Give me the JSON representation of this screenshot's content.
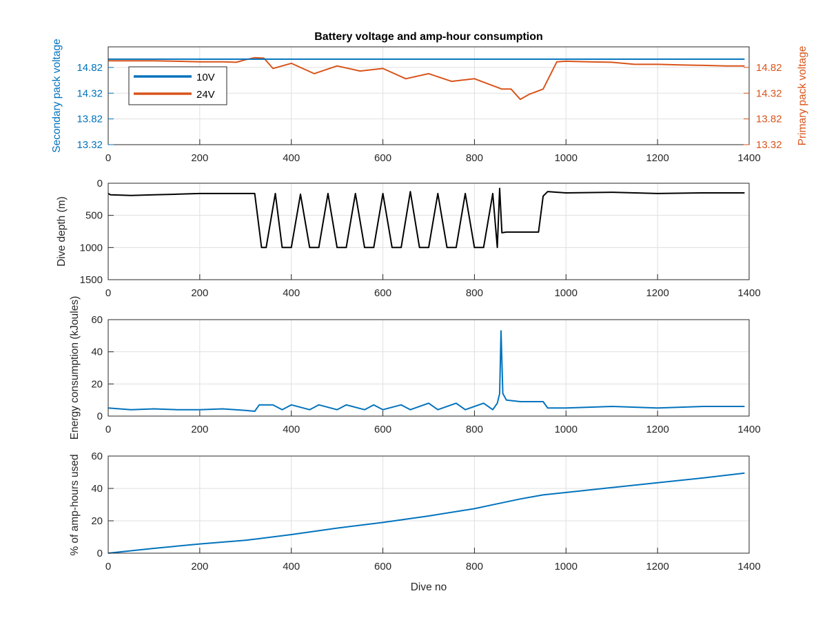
{
  "colors": {
    "blue": "#0072bd",
    "orange": "#d95319",
    "black": "#000000",
    "grid": "#dfdfdf",
    "axis": "#262626"
  },
  "chart_data": [
    {
      "type": "line",
      "title": "Battery voltage and amp-hour consumption",
      "xlabel": "",
      "ylabel_left": "Secondary pack voltage",
      "ylabel_right": "Primary pack voltage",
      "xlim": [
        0,
        1400
      ],
      "ylim": [
        13.32,
        15.22
      ],
      "x_ticks": [
        "0",
        "200",
        "400",
        "600",
        "800",
        "1000",
        "1200",
        "1400"
      ],
      "yticks_left": [
        "13.32",
        "13.82",
        "14.32",
        "14.82"
      ],
      "yticks_right": [
        "13.32",
        "13.82",
        "14.32",
        "14.82"
      ],
      "legend_position": "top-left",
      "grid": true,
      "series": [
        {
          "name": "10V",
          "axis": "left",
          "color": "#0072bd",
          "x": [
            0,
            1390
          ],
          "y": [
            14.98,
            14.98
          ]
        },
        {
          "name": "24V",
          "axis": "right",
          "color": "#d95319",
          "x": [
            0,
            50,
            100,
            150,
            200,
            250,
            280,
            300,
            320,
            340,
            360,
            400,
            450,
            500,
            550,
            600,
            650,
            700,
            750,
            800,
            830,
            860,
            880,
            900,
            920,
            950,
            980,
            1000,
            1050,
            1100,
            1150,
            1200,
            1250,
            1300,
            1350,
            1390
          ],
          "y": [
            14.95,
            14.95,
            14.95,
            14.94,
            14.93,
            14.93,
            14.92,
            14.97,
            15.01,
            15.0,
            14.8,
            14.9,
            14.7,
            14.85,
            14.75,
            14.8,
            14.6,
            14.7,
            14.55,
            14.6,
            14.5,
            14.4,
            14.4,
            14.2,
            14.3,
            14.4,
            14.93,
            14.94,
            14.93,
            14.92,
            14.88,
            14.88,
            14.87,
            14.86,
            14.85,
            14.85
          ]
        }
      ]
    },
    {
      "type": "line",
      "title": "",
      "xlabel": "",
      "ylabel": "Dive depth (m)",
      "xlim": [
        0,
        1400
      ],
      "ylim": [
        0,
        1500
      ],
      "y_reversed": true,
      "x_ticks": [
        "0",
        "200",
        "400",
        "600",
        "800",
        "1000",
        "1200",
        "1400"
      ],
      "y_ticks": [
        "0",
        "500",
        "1000",
        "1500"
      ],
      "grid": true,
      "series": [
        {
          "color": "#000000",
          "x": [
            0,
            5,
            50,
            100,
            150,
            200,
            250,
            320,
            335,
            345,
            365,
            380,
            400,
            420,
            440,
            460,
            480,
            500,
            520,
            540,
            560,
            580,
            600,
            620,
            640,
            660,
            680,
            700,
            720,
            740,
            760,
            780,
            800,
            820,
            840,
            850,
            855,
            860,
            870,
            900,
            940,
            950,
            960,
            1000,
            1100,
            1200,
            1300,
            1390
          ],
          "y": [
            160,
            180,
            190,
            180,
            170,
            160,
            160,
            160,
            1000,
            1000,
            160,
            1000,
            1000,
            170,
            1000,
            1000,
            160,
            1000,
            1000,
            160,
            1000,
            1000,
            160,
            1000,
            1000,
            130,
            1000,
            1000,
            160,
            1000,
            1000,
            160,
            1000,
            1000,
            160,
            1000,
            80,
            770,
            760,
            760,
            760,
            200,
            130,
            150,
            140,
            160,
            150,
            150
          ]
        }
      ]
    },
    {
      "type": "line",
      "title": "",
      "xlabel": "",
      "ylabel": "Energy consumption (kJoules)",
      "xlim": [
        0,
        1400
      ],
      "ylim": [
        0,
        60
      ],
      "x_ticks": [
        "0",
        "200",
        "400",
        "600",
        "800",
        "1000",
        "1200",
        "1400"
      ],
      "y_ticks": [
        "0",
        "20",
        "40",
        "60"
      ],
      "grid": true,
      "series": [
        {
          "color": "#0072bd",
          "x": [
            0,
            50,
            100,
            150,
            200,
            250,
            300,
            320,
            330,
            360,
            380,
            400,
            440,
            460,
            500,
            520,
            560,
            580,
            600,
            640,
            660,
            700,
            720,
            760,
            780,
            820,
            840,
            850,
            855,
            858,
            862,
            870,
            900,
            950,
            960,
            1000,
            1100,
            1200,
            1300,
            1390
          ],
          "y": [
            5,
            4,
            4.5,
            4,
            4,
            4.5,
            3.5,
            3,
            7,
            7,
            4,
            7,
            4,
            7,
            4,
            7,
            4,
            7,
            4,
            7,
            4,
            8,
            4,
            8,
            4,
            8,
            4,
            8,
            14,
            53,
            14,
            10,
            9,
            9,
            5,
            5,
            6,
            5,
            6,
            6
          ]
        }
      ]
    },
    {
      "type": "line",
      "title": "",
      "xlabel": "Dive no",
      "ylabel": "% of amp-hours used",
      "xlim": [
        0,
        1400
      ],
      "ylim": [
        0,
        60
      ],
      "x_ticks": [
        "0",
        "200",
        "400",
        "600",
        "800",
        "1000",
        "1200",
        "1400"
      ],
      "y_ticks": [
        "0",
        "20",
        "40",
        "60"
      ],
      "grid": true,
      "series": [
        {
          "color": "#0072bd",
          "x": [
            0,
            100,
            200,
            300,
            330,
            400,
            500,
            600,
            700,
            800,
            850,
            900,
            950,
            1000,
            1100,
            1200,
            1300,
            1390
          ],
          "y": [
            0,
            3,
            5.7,
            8,
            9,
            11.5,
            15.5,
            19,
            23,
            27.5,
            30.5,
            33.5,
            36,
            37.5,
            40.5,
            43.5,
            46.5,
            49.5
          ]
        }
      ]
    }
  ]
}
